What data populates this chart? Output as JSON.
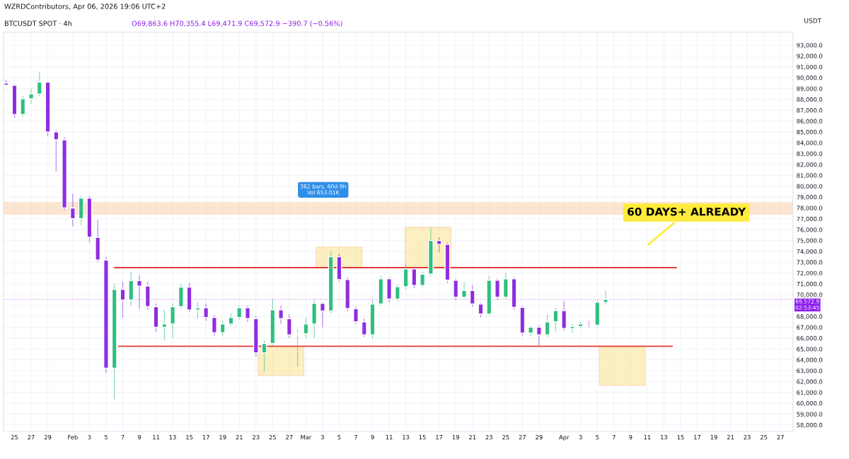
{
  "chart_data": {
    "type": "candlestick",
    "title": "BTCUSDT SPOT · 4h",
    "subtitle": "O69,863.6 H70,355.4 L69,471.9 C69,572.9 −390.7 (−0.56%)",
    "ylabel": "USDT",
    "x": [
      "2026-01-24",
      "2026-01-25",
      "2026-01-26",
      "2026-01-27",
      "2026-01-28",
      "2026-01-29",
      "2026-01-30",
      "2026-01-31",
      "2026-02-01",
      "2026-02-02",
      "2026-02-03",
      "2026-02-04",
      "2026-02-05",
      "2026-02-06",
      "2026-02-07",
      "2026-02-08",
      "2026-02-09",
      "2026-02-10",
      "2026-02-11",
      "2026-02-12",
      "2026-02-13",
      "2026-02-14",
      "2026-02-15",
      "2026-02-16",
      "2026-02-17",
      "2026-02-18",
      "2026-02-19",
      "2026-02-20",
      "2026-02-21",
      "2026-02-22",
      "2026-02-23",
      "2026-02-24",
      "2026-02-25",
      "2026-02-26",
      "2026-02-27",
      "2026-02-28",
      "2026-03-01",
      "2026-03-02",
      "2026-03-03",
      "2026-03-04",
      "2026-03-05",
      "2026-03-06",
      "2026-03-07",
      "2026-03-08",
      "2026-03-09",
      "2026-03-10",
      "2026-03-11",
      "2026-03-12",
      "2026-03-13",
      "2026-03-14",
      "2026-03-15",
      "2026-03-16",
      "2026-03-17",
      "2026-03-18",
      "2026-03-19",
      "2026-03-20",
      "2026-03-21",
      "2026-03-22",
      "2026-03-23",
      "2026-03-24",
      "2026-03-25",
      "2026-03-26",
      "2026-03-27",
      "2026-03-28",
      "2026-03-29",
      "2026-03-30",
      "2026-03-31",
      "2026-04-01",
      "2026-04-02",
      "2026-04-03",
      "2026-04-04",
      "2026-04-05",
      "2026-04-06"
    ],
    "ohlc": [
      [
        89500,
        89800,
        89200,
        89300
      ],
      [
        89300,
        89400,
        86300,
        86600
      ],
      [
        86600,
        88300,
        86400,
        88060
      ],
      [
        88060,
        89000,
        87600,
        88500
      ],
      [
        88500,
        90560,
        88300,
        89600
      ],
      [
        89600,
        89700,
        84600,
        85000
      ],
      [
        85000,
        85200,
        81350,
        84280
      ],
      [
        84280,
        84500,
        77800,
        78000
      ],
      [
        78000,
        79300,
        76300,
        77000
      ],
      [
        77000,
        79100,
        76400,
        78900
      ],
      [
        78900,
        79100,
        74800,
        75300
      ],
      [
        75300,
        76900,
        73000,
        73200
      ],
      [
        73200,
        73500,
        62800,
        63230
      ],
      [
        63230,
        71000,
        60370,
        70500
      ],
      [
        70500,
        71200,
        67900,
        69500
      ],
      [
        69500,
        72100,
        69000,
        71300
      ],
      [
        71300,
        71800,
        68700,
        70800
      ],
      [
        70800,
        71200,
        68600,
        68900
      ],
      [
        68900,
        69200,
        66600,
        67000
      ],
      [
        67000,
        68600,
        65800,
        67300
      ],
      [
        67300,
        69200,
        66000,
        68900
      ],
      [
        68900,
        71000,
        68700,
        70700
      ],
      [
        70700,
        71100,
        68400,
        68600
      ],
      [
        68600,
        69300,
        67800,
        68800
      ],
      [
        68800,
        69200,
        67600,
        67900
      ],
      [
        67900,
        68100,
        66200,
        66500
      ],
      [
        66500,
        67600,
        66200,
        67300
      ],
      [
        67300,
        68300,
        67100,
        67900
      ],
      [
        67900,
        69000,
        67700,
        68800
      ],
      [
        68800,
        69000,
        67500,
        67800
      ],
      [
        67800,
        68000,
        64300,
        64640
      ],
      [
        64640,
        65800,
        62900,
        65500
      ],
      [
        65500,
        69600,
        65300,
        68600
      ],
      [
        68600,
        69000,
        67300,
        67800
      ],
      [
        67800,
        68200,
        66000,
        66300
      ],
      [
        66300,
        66800,
        63400,
        66400
      ],
      [
        66400,
        67900,
        66000,
        67300
      ],
      [
        67300,
        69600,
        66000,
        69200
      ],
      [
        69200,
        69300,
        67000,
        68500
      ],
      [
        68500,
        74000,
        68300,
        73500
      ],
      [
        73500,
        73800,
        71200,
        71400
      ],
      [
        71400,
        71600,
        68500,
        68720
      ],
      [
        68720,
        68900,
        67300,
        67500
      ],
      [
        67500,
        67800,
        66100,
        66300
      ],
      [
        66300,
        69500,
        66000,
        69150
      ],
      [
        69150,
        71700,
        69000,
        71470
      ],
      [
        71470,
        71600,
        69300,
        69600
      ],
      [
        69600,
        70900,
        69400,
        70740
      ],
      [
        70740,
        72800,
        70500,
        72380
      ],
      [
        72380,
        72500,
        70600,
        70860
      ],
      [
        70860,
        72100,
        70700,
        71900
      ],
      [
        71900,
        76160,
        71700,
        75000
      ],
      [
        75000,
        75300,
        73900,
        74640
      ],
      [
        74640,
        74800,
        71100,
        71340
      ],
      [
        71340,
        71500,
        69500,
        69760
      ],
      [
        69760,
        71200,
        69600,
        70400
      ],
      [
        70400,
        70900,
        68900,
        69150
      ],
      [
        69150,
        69300,
        67900,
        68230
      ],
      [
        68230,
        71700,
        68100,
        71340
      ],
      [
        71340,
        71500,
        69500,
        69760
      ],
      [
        69760,
        72000,
        69600,
        71470
      ],
      [
        71470,
        71600,
        68600,
        68840
      ],
      [
        68840,
        69000,
        66200,
        66460
      ],
      [
        66460,
        67100,
        66200,
        67010
      ],
      [
        67010,
        67200,
        65300,
        66300
      ],
      [
        66300,
        68200,
        66100,
        67500
      ],
      [
        67500,
        68800,
        66600,
        68540
      ],
      [
        68540,
        69400,
        66700,
        66890
      ],
      [
        66890,
        67300,
        66500,
        67070
      ],
      [
        67070,
        67500,
        66900,
        67300
      ],
      [
        67300,
        67600,
        67000,
        67200
      ],
      [
        67200,
        69500,
        67000,
        69300
      ],
      [
        69300,
        70400,
        69100,
        69572.9
      ]
    ],
    "colors": [
      "#8f2de0",
      "#8f2de0",
      "#2fbf7f",
      "#2fbf7f",
      "#2fbf7f",
      "#8f2de0",
      "#8f2de0",
      "#8f2de0",
      "#8f2de0",
      "#2fbf7f",
      "#8f2de0",
      "#8f2de0",
      "#8f2de0",
      "#2fbf7f",
      "#8f2de0",
      "#2fbf7f",
      "#8f2de0",
      "#8f2de0",
      "#8f2de0",
      "#2fbf7f",
      "#2fbf7f",
      "#2fbf7f",
      "#8f2de0",
      "#2fbf7f",
      "#8f2de0",
      "#8f2de0",
      "#2fbf7f",
      "#2fbf7f",
      "#2fbf7f",
      "#8f2de0",
      "#8f2de0",
      "#2fbf7f",
      "#2fbf7f",
      "#8f2de0",
      "#8f2de0",
      "#2fbf7f",
      "#2fbf7f",
      "#2fbf7f",
      "#8f2de0",
      "#2fbf7f",
      "#8f2de0",
      "#8f2de0",
      "#8f2de0",
      "#8f2de0",
      "#2fbf7f",
      "#2fbf7f",
      "#8f2de0",
      "#2fbf7f",
      "#2fbf7f",
      "#8f2de0",
      "#2fbf7f",
      "#2fbf7f",
      "#8f2de0",
      "#8f2de0",
      "#8f2de0",
      "#2fbf7f",
      "#8f2de0",
      "#8f2de0",
      "#2fbf7f",
      "#8f2de0",
      "#2fbf7f",
      "#8f2de0",
      "#8f2de0",
      "#2fbf7f",
      "#8f2de0",
      "#2fbf7f",
      "#2fbf7f",
      "#8f2de0",
      "#2fbf7f",
      "#2fbf7f",
      "#8f2de0",
      "#2fbf7f",
      "#2fbf7f"
    ],
    "series": [
      {
        "type": "line",
        "x": [
          "2026-02-06",
          "2026-04-14T12:00"
        ],
        "values": [
          72500,
          72500
        ],
        "color": "#e53935"
      },
      {
        "type": "line",
        "x": [
          "2026-02-06T12:00",
          "2026-04-14"
        ],
        "values": [
          65250,
          65250
        ],
        "color": "#e53935"
      },
      {
        "type": "bar",
        "x": [
          "2026-02-26",
          "2026-03-05",
          "2026-03-15T16:00",
          "2026-04-08"
        ],
        "base": [
          62560,
          72500,
          72500,
          61650
        ],
        "values": [
          2690,
          1900,
          3720,
          3600
        ],
        "color": "#fbe38e"
      }
    ],
    "bands": [
      {
        "axis": "y",
        "from": 77400,
        "to": 78500,
        "color": "#f9c89b"
      }
    ],
    "ref_lines": [
      {
        "axis": "y",
        "value": 69572.9,
        "label": "69,572.9\n02:53:45",
        "color": "#8e1cf0",
        "line_style": "dotted"
      }
    ],
    "annotations": [
      "WZRDContributors, Apr 06, 2026 19:06 UTC+2",
      "362 bars, 60d 9h\nVol 653.01K",
      "60 DAYS+ ALREADY"
    ],
    "xlim": [
      "2026-01-23T16:00",
      "2026-04-28T12:00"
    ],
    "xticks": [
      {
        "value": "2026-01-25",
        "label": "25"
      },
      {
        "value": "2026-01-27",
        "label": "27"
      },
      {
        "value": "2026-01-29",
        "label": "29"
      },
      {
        "value": "2026-02-01",
        "label": "Feb"
      },
      {
        "value": "2026-02-03",
        "label": "3"
      },
      {
        "value": "2026-02-05",
        "label": "5"
      },
      {
        "value": "2026-02-07",
        "label": "7"
      },
      {
        "value": "2026-02-09",
        "label": "9"
      },
      {
        "value": "2026-02-11",
        "label": "11"
      },
      {
        "value": "2026-02-13",
        "label": "13"
      },
      {
        "value": "2026-02-15",
        "label": "15"
      },
      {
        "value": "2026-02-17",
        "label": "17"
      },
      {
        "value": "2026-02-19",
        "label": "19"
      },
      {
        "value": "2026-02-21",
        "label": "21"
      },
      {
        "value": "2026-02-23",
        "label": "23"
      },
      {
        "value": "2026-02-25",
        "label": "25"
      },
      {
        "value": "2026-02-27",
        "label": "27"
      },
      {
        "value": "2026-03-01",
        "label": "Mar"
      },
      {
        "value": "2026-03-03",
        "label": "3"
      },
      {
        "value": "2026-03-05",
        "label": "5"
      },
      {
        "value": "2026-03-07",
        "label": "7"
      },
      {
        "value": "2026-03-09",
        "label": "9"
      },
      {
        "value": "2026-03-11",
        "label": "11"
      },
      {
        "value": "2026-03-13",
        "label": "13"
      },
      {
        "value": "2026-03-15",
        "label": "15"
      },
      {
        "value": "2026-03-17",
        "label": "17"
      },
      {
        "value": "2026-03-19",
        "label": "19"
      },
      {
        "value": "2026-03-21",
        "label": "21"
      },
      {
        "value": "2026-03-23",
        "label": "23"
      },
      {
        "value": "2026-03-25",
        "label": "25"
      },
      {
        "value": "2026-03-27",
        "label": "27"
      },
      {
        "value": "2026-03-29",
        "label": "29"
      },
      {
        "value": "2026-04-01",
        "label": "Apr"
      },
      {
        "value": "2026-04-03",
        "label": "3"
      },
      {
        "value": "2026-04-05",
        "label": "5"
      },
      {
        "value": "2026-04-07",
        "label": "7"
      },
      {
        "value": "2026-04-09",
        "label": "9"
      },
      {
        "value": "2026-04-11",
        "label": "11"
      },
      {
        "value": "2026-04-13",
        "label": "13"
      },
      {
        "value": "2026-04-15",
        "label": "15"
      },
      {
        "value": "2026-04-17",
        "label": "17"
      },
      {
        "value": "2026-04-19",
        "label": "19"
      },
      {
        "value": "2026-04-21",
        "label": "21"
      },
      {
        "value": "2026-04-23",
        "label": "23"
      },
      {
        "value": "2026-04-25",
        "label": "25"
      },
      {
        "value": "2026-04-27",
        "label": "27"
      }
    ],
    "ylim": [
      57400,
      94200
    ],
    "yticks": [
      {
        "value": 58000,
        "label": "58,000.0"
      },
      {
        "value": 59000,
        "label": "59,000.0"
      },
      {
        "value": 60000,
        "label": "60,000.0"
      },
      {
        "value": 61000,
        "label": "61,000.0"
      },
      {
        "value": 62000,
        "label": "62,000.0"
      },
      {
        "value": 63000,
        "label": "63,000.0"
      },
      {
        "value": 64000,
        "label": "64,000.0"
      },
      {
        "value": 65000,
        "label": "65,000.0"
      },
      {
        "value": 66000,
        "label": "66,000.0"
      },
      {
        "value": 67000,
        "label": "67,000.0"
      },
      {
        "value": 68000,
        "label": "68,000.0"
      },
      {
        "value": 69000,
        "label": null
      },
      {
        "value": 70000,
        "label": "70,000.0"
      },
      {
        "value": 71000,
        "label": "71,000.0"
      },
      {
        "value": 72000,
        "label": "72,000.0"
      },
      {
        "value": 73000,
        "label": "73,000.0"
      },
      {
        "value": 74000,
        "label": "74,000.0"
      },
      {
        "value": 75000,
        "label": "75,000.0"
      },
      {
        "value": 76000,
        "label": "76,000.0"
      },
      {
        "value": 77000,
        "label": "77,000.0"
      },
      {
        "value": 78000,
        "label": "78,000.0"
      },
      {
        "value": 79000,
        "label": "79,000.0"
      },
      {
        "value": 80000,
        "label": "80,000.0"
      },
      {
        "value": 81000,
        "label": "81,000.0"
      },
      {
        "value": 82000,
        "label": "82,000.0"
      },
      {
        "value": 83000,
        "label": "83,000.0"
      },
      {
        "value": 84000,
        "label": "84,000.0"
      },
      {
        "value": 85000,
        "label": "85,000.0"
      },
      {
        "value": 86000,
        "label": "86,000.0"
      },
      {
        "value": 87000,
        "label": "87,000.0"
      },
      {
        "value": 88000,
        "label": "88,000.0"
      },
      {
        "value": 89000,
        "label": "89,000.0"
      },
      {
        "value": 90000,
        "label": "90,000.0"
      },
      {
        "value": 91000,
        "label": "91,000.0"
      },
      {
        "value": 92000,
        "label": "92,000.0"
      },
      {
        "value": 93000,
        "label": "93,000.0"
      }
    ],
    "grid": true
  }
}
